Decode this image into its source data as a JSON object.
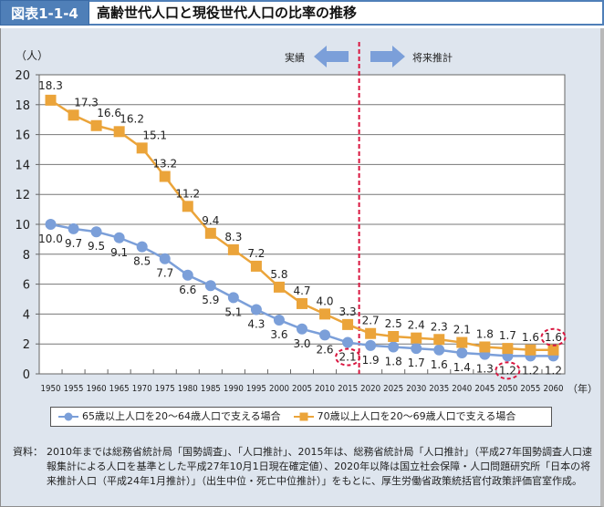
{
  "header": {
    "figure_label": "図表1-1-4",
    "title": "高齢世代人口と現役世代人口の比率の推移"
  },
  "annotations": {
    "actual_label": "実績",
    "projection_label": "将来推計",
    "divider_between": [
      "2015",
      "2020"
    ],
    "highlighted_points": [
      {
        "series": 0,
        "year": "2015",
        "value": 2.1
      },
      {
        "series": 0,
        "year": "2050",
        "value": 1.2
      },
      {
        "series": 1,
        "year": "2060",
        "value": 1.6
      }
    ]
  },
  "colors": {
    "series_blue": "#7b9fd9",
    "series_orange": "#eba43a",
    "divider_red": "#d9163f",
    "header_blue": "#4f7fb8",
    "panel_bg": "#dee5ee"
  },
  "chart_data": {
    "type": "line",
    "title": "高齢世代人口と現役世代人口の比率の推移",
    "xlabel": "（年）",
    "ylabel": "（人）",
    "ylim": [
      0,
      20
    ],
    "yticks": [
      0,
      2,
      4,
      6,
      8,
      10,
      12,
      14,
      16,
      18,
      20
    ],
    "grid": true,
    "legend_position": "bottom",
    "categories": [
      "1950",
      "1955",
      "1960",
      "1965",
      "1970",
      "1975",
      "1980",
      "1985",
      "1990",
      "1995",
      "2000",
      "2005",
      "2010",
      "2015",
      "2020",
      "2025",
      "2030",
      "2035",
      "2040",
      "2045",
      "2050",
      "2055",
      "2060"
    ],
    "series": [
      {
        "name": "65歳以上人口を20～64歳人口で支える場合",
        "marker": "circle",
        "values": [
          10.0,
          9.7,
          9.5,
          9.1,
          8.5,
          7.7,
          6.6,
          5.9,
          5.1,
          4.3,
          3.6,
          3.0,
          2.6,
          2.1,
          1.9,
          1.8,
          1.7,
          1.6,
          1.4,
          1.3,
          1.2,
          1.2,
          1.2
        ],
        "labels": [
          "10.0",
          "9.7",
          "9.5",
          "9.1",
          "8.5",
          "7.7",
          "6.6",
          "5.9",
          "5.1",
          "4.3",
          "3.6",
          "3.0",
          "2.6",
          "2.1",
          "1.9",
          "1.8",
          "1.7",
          "1.6",
          "1.4",
          "1.3",
          "1.2",
          "1.2",
          "1.2"
        ]
      },
      {
        "name": "70歳以上人口を20～69歳人口で支える場合",
        "marker": "square",
        "values": [
          18.3,
          17.3,
          16.6,
          16.2,
          15.1,
          13.2,
          11.2,
          9.4,
          8.3,
          7.2,
          5.8,
          4.7,
          4.0,
          3.3,
          2.7,
          2.5,
          2.4,
          2.3,
          2.1,
          1.8,
          1.7,
          1.6,
          1.6
        ],
        "labels": [
          "18.3",
          "17.3",
          "16.6",
          "16.2",
          "15.1",
          "13.2",
          "11.2",
          "9.4",
          "8.3",
          "7.2",
          "5.8",
          "4.7",
          "4.0",
          "3.3",
          "2.7",
          "2.5",
          "2.4",
          "2.3",
          "2.1",
          "1.8",
          "1.7",
          "1.6",
          "1.6"
        ]
      }
    ]
  },
  "source": {
    "label": "資料：",
    "text": "2010年までは総務省統計局「国勢調査」、「人口推計」、2015年は、総務省統計局「人口推計」（平成27年国勢調査人口速報集計による人口を基準とした平成27年10月1日現在確定値）、2020年以降は国立社会保障・人口問題研究所「日本の将来推計人口（平成24年1月推計）」（出生中位・死亡中位推計）」をもとに、厚生労働省政策統括官付政策評価官室作成。"
  }
}
